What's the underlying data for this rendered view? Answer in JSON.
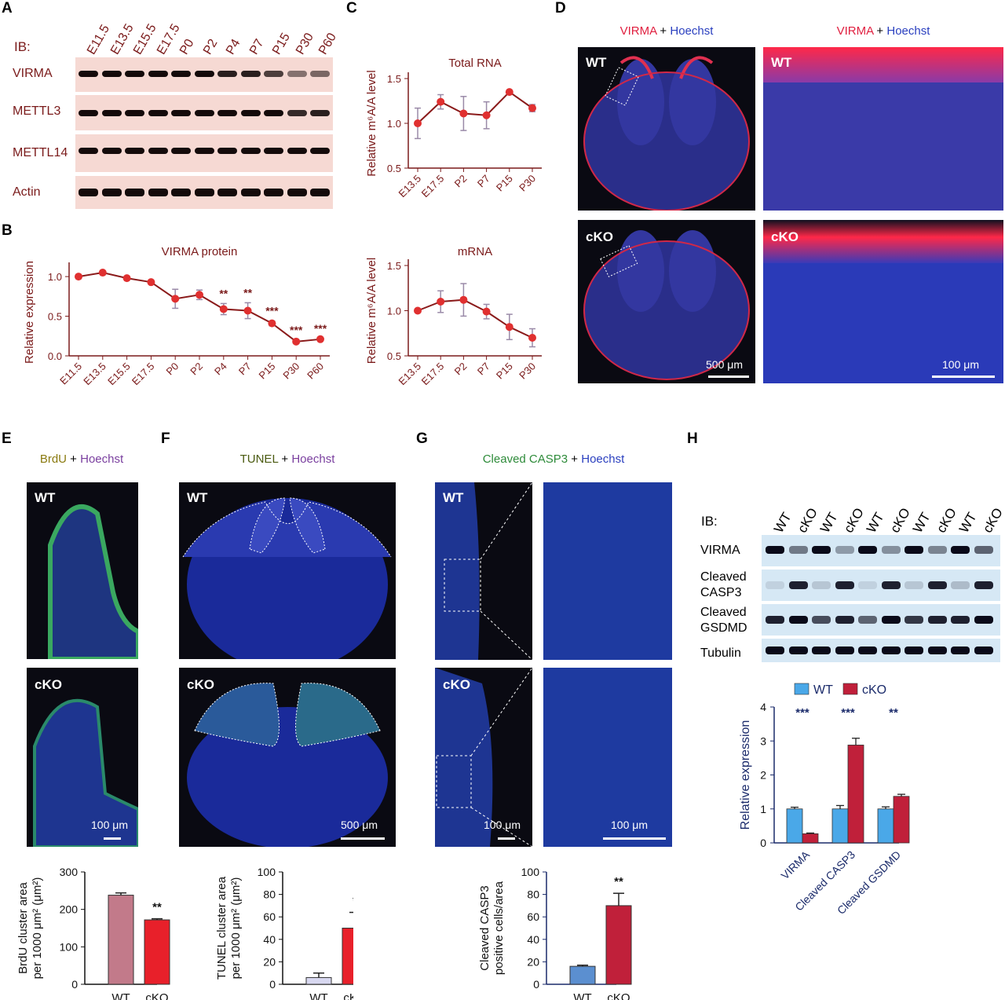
{
  "panels": {
    "A": {
      "letter": "A",
      "ib": "IB:",
      "lanes": [
        "E11.5",
        "E13.5",
        "E15.5",
        "E17.5",
        "P0",
        "P2",
        "P4",
        "P7",
        "P15",
        "P30",
        "P60"
      ],
      "rows": [
        "VIRMA",
        "METTL3",
        "METTL14",
        "Actin"
      ]
    },
    "B": {
      "letter": "B"
    },
    "C": {
      "letter": "C"
    },
    "D": {
      "letter": "D",
      "title_a": "VIRMA",
      "title_plus": " + ",
      "title_b": "Hoechst",
      "wt": "WT",
      "cko": "cKO",
      "scale_left": "500 μm",
      "scale_right": "100 μm"
    },
    "E": {
      "letter": "E",
      "title_a": "BrdU",
      "title_plus": " + ",
      "title_b": "Hoechst",
      "wt": "WT",
      "cko": "cKO",
      "scale": "100 μm"
    },
    "F": {
      "letter": "F",
      "title_a": "TUNEL",
      "title_plus": " + ",
      "title_b": "Hoechst",
      "wt": "WT",
      "cko": "cKO",
      "scale": "500 μm"
    },
    "G": {
      "letter": "G",
      "title_a": "Cleaved CASP3",
      "title_plus": " + ",
      "title_b": "Hoechst",
      "wt": "WT",
      "cko": "cKO",
      "scale_left": "100 μm",
      "scale_right": "100 μm"
    },
    "H": {
      "letter": "H",
      "ib": "IB:",
      "lanes": [
        "WT",
        "cKO",
        "WT",
        "cKO",
        "WT",
        "cKO",
        "WT",
        "cKO",
        "WT",
        "cKO"
      ],
      "rows": [
        "VIRMA",
        "Cleaved\nCASP3",
        "Cleaved\nGSDMD",
        "Tubulin"
      ]
    }
  },
  "colors": {
    "dark_red": "#7a1a1a",
    "line_red": "#e03030",
    "blue_title": "#2a3fbf",
    "green_title": "#2e8b3a",
    "olive": "#8a7a10",
    "purple": "#7a3f9f",
    "wt_bar": "#c27a8a",
    "cko_bar": "#e8202a",
    "h_wt": "#4aa8e8",
    "h_cko": "#c0203a",
    "g_wt": "#5b8fd0",
    "g_cko": "#c0203a"
  },
  "chart_data": [
    {
      "id": "B",
      "type": "line",
      "title": "VIRMA protein",
      "ylabel": "Relative expression",
      "categories": [
        "E11.5",
        "E13.5",
        "E15.5",
        "E17.5",
        "P0",
        "P2",
        "P4",
        "P7",
        "P15",
        "P30",
        "P60"
      ],
      "values": [
        1.0,
        1.05,
        0.98,
        0.93,
        0.72,
        0.77,
        0.59,
        0.57,
        0.41,
        0.18,
        0.21
      ],
      "errors": [
        0.0,
        0.0,
        0.0,
        0.0,
        0.12,
        0.06,
        0.07,
        0.1,
        0.03,
        0.02,
        0.01
      ],
      "significance": [
        "",
        "",
        "",
        "",
        "",
        "",
        "**",
        "**",
        "***",
        "***",
        "***"
      ],
      "ylim": [
        0,
        1.1
      ],
      "yticks": [
        "0.0",
        "0.5",
        "1.0"
      ]
    },
    {
      "id": "C1",
      "type": "line",
      "title": "Total RNA",
      "ylabel": "Relative m⁶A/A level",
      "categories": [
        "E13.5",
        "E17.5",
        "P2",
        "P7",
        "P15",
        "P30"
      ],
      "values": [
        1.0,
        1.24,
        1.11,
        1.09,
        1.35,
        1.17
      ],
      "errors": [
        0.17,
        0.08,
        0.19,
        0.15,
        0.0,
        0.04
      ],
      "ylim": [
        0.5,
        1.5
      ],
      "yticks": [
        "0.5",
        "1.0",
        "1.5"
      ]
    },
    {
      "id": "C2",
      "type": "line",
      "title": "mRNA",
      "ylabel": "Relative m⁶A/A level",
      "categories": [
        "E13.5",
        "E17.5",
        "P2",
        "P7",
        "P15",
        "P30"
      ],
      "values": [
        1.0,
        1.1,
        1.12,
        0.99,
        0.82,
        0.7
      ],
      "errors": [
        0.0,
        0.12,
        0.18,
        0.08,
        0.14,
        0.1
      ],
      "ylim": [
        0.5,
        1.5
      ],
      "yticks": [
        "0.5",
        "1.0",
        "1.5"
      ]
    },
    {
      "id": "E",
      "type": "bar",
      "ylabel": "BrdU cluster area per 1000 μm² (μm²)",
      "categories": [
        "WT",
        "cKO"
      ],
      "values": [
        238,
        172
      ],
      "errors": [
        6,
        3
      ],
      "significance": "**",
      "ylim": [
        0,
        300
      ],
      "yticks": [
        "0",
        "100",
        "200",
        "300"
      ]
    },
    {
      "id": "F",
      "type": "bar",
      "ylabel": "TUNEL cluster area per 1000 μm² (μm²)",
      "categories": [
        "WT",
        "cKO"
      ],
      "values": [
        6,
        50
      ],
      "errors": [
        4,
        14
      ],
      "significance": "*",
      "ylim": [
        0,
        100
      ],
      "yticks": [
        "0",
        "20",
        "40",
        "60",
        "80",
        "100"
      ]
    },
    {
      "id": "G",
      "type": "bar",
      "ylabel": "Cleaved CASP3 positive cells/area",
      "categories": [
        "WT",
        "cKO"
      ],
      "values": [
        16,
        70
      ],
      "errors": [
        1,
        11
      ],
      "significance": "**",
      "ylim": [
        0,
        100
      ],
      "yticks": [
        "0",
        "20",
        "40",
        "60",
        "80",
        "100"
      ]
    },
    {
      "id": "H",
      "type": "bar",
      "ylabel": "Relative expression",
      "categories": [
        "VIRMA",
        "Cleaved CASP3",
        "Cleaved GSDMD"
      ],
      "series": [
        {
          "name": "WT",
          "values": [
            1.0,
            1.0,
            1.0
          ],
          "errors": [
            0.05,
            0.1,
            0.06
          ]
        },
        {
          "name": "cKO",
          "values": [
            0.27,
            2.88,
            1.37
          ],
          "errors": [
            0.02,
            0.2,
            0.06
          ]
        }
      ],
      "significance": [
        "***",
        "***",
        "**"
      ],
      "ylim": [
        0,
        4
      ],
      "yticks": [
        "0",
        "1",
        "2",
        "3",
        "4"
      ]
    }
  ]
}
